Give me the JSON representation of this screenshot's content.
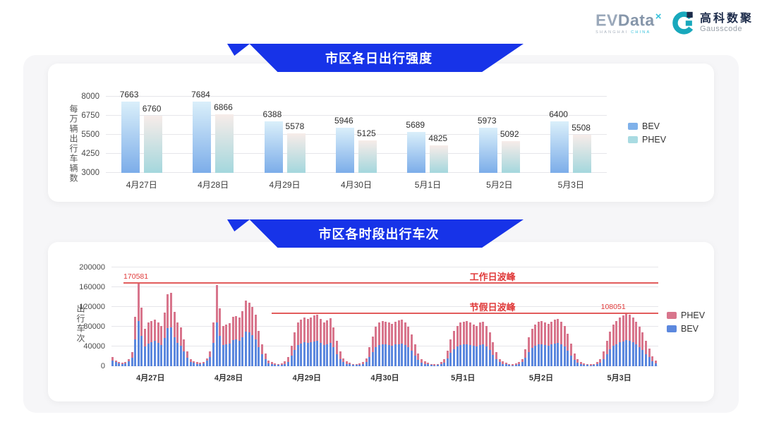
{
  "header": {
    "evdata": {
      "wordmark_ev": "EV",
      "wordmark_data": "Data",
      "mark": "×",
      "subtitle_left": "SHANGHAI ",
      "subtitle_right": "CHINA"
    },
    "gausscode": {
      "name_cn": "高科数聚",
      "name_en": "Gausscode"
    }
  },
  "banners": [
    {
      "title": "市区各日出行强度"
    },
    {
      "title": "市区各时段出行车次"
    }
  ],
  "colors": {
    "banner_blue": "#1733E8",
    "bev_gradient_top": "#DAEFFA",
    "bev_gradient_bottom": "#7CADE9",
    "phev_gradient_top": "#F7ECE9",
    "phev_gradient_bottom": "#A4D7DD",
    "bev_legend1": "#7FB1EA",
    "phev_legend1": "#A9DBE2",
    "bev_bar2": "#5C88DE",
    "phev_bar2": "#D8758C",
    "annotation_line_red": "#E25D5D",
    "annotation_text_red": "#E03A3A"
  },
  "chart_data": [
    {
      "type": "bar",
      "title": "市区各日出行强度",
      "ylabel": "每万辆出行车辆数",
      "ylim": [
        3000,
        8000
      ],
      "yticks": [
        3000,
        4250,
        5500,
        6750,
        8000
      ],
      "grid": true,
      "legend_position": "right",
      "categories": [
        "4月27日",
        "4月28日",
        "4月29日",
        "4月30日",
        "5月1日",
        "5月2日",
        "5月3日"
      ],
      "series": [
        {
          "name": "BEV",
          "values": [
            7663,
            7684,
            6388,
            5946,
            5689,
            5973,
            6400
          ]
        },
        {
          "name": "PHEV",
          "values": [
            6760,
            6866,
            5578,
            5125,
            4825,
            5092,
            5508
          ]
        }
      ]
    },
    {
      "type": "stacked-bar",
      "title": "市区各时段出行车次",
      "ylabel": "出行车次",
      "ylim": [
        0,
        200000
      ],
      "yticks": [
        0,
        40000,
        80000,
        120000,
        160000,
        200000
      ],
      "grid": true,
      "legend_position": "right",
      "legend_order": [
        "PHEV",
        "BEV"
      ],
      "annotations": [
        {
          "text": "工作日波峰",
          "value": 170581,
          "value_label": "170581",
          "line_start": 0.022,
          "text_x": 0.655,
          "value_x": 0.022
        },
        {
          "text": "节假日波峰",
          "value": 108051,
          "value_label": "108051",
          "line_start": 0.293,
          "text_x": 0.655,
          "value_x": 0.895
        }
      ],
      "days": [
        {
          "date": "4月27日",
          "total": [
            18000,
            12000,
            9000,
            7000,
            9000,
            15000,
            28000,
            100000,
            170581,
            119000,
            76000,
            88000,
            92000,
            95000,
            89000,
            81000,
            108000,
            146000,
            149000,
            110000,
            89000,
            79000,
            55000,
            30000
          ],
          "bev": [
            12000,
            8000,
            6000,
            5000,
            6000,
            10000,
            17000,
            54000,
            91000,
            62000,
            40000,
            46000,
            49000,
            51000,
            47000,
            43000,
            57000,
            77000,
            79000,
            58000,
            47000,
            42000,
            30000,
            17000
          ]
        },
        {
          "date": "4月28日",
          "total": [
            14000,
            10000,
            8000,
            7000,
            9000,
            16000,
            30000,
            88000,
            164000,
            117000,
            82000,
            84000,
            87000,
            100000,
            102000,
            98000,
            112000,
            133000,
            128000,
            120000,
            104000,
            72000,
            45000,
            26000
          ],
          "bev": [
            9000,
            7000,
            5000,
            5000,
            6000,
            11000,
            18000,
            47000,
            88000,
            61000,
            43000,
            44000,
            46000,
            53000,
            54000,
            52000,
            59000,
            70000,
            68000,
            63000,
            55000,
            38000,
            24000,
            14000
          ]
        },
        {
          "date": "4月29日",
          "total": [
            12000,
            8000,
            6000,
            5000,
            6000,
            10000,
            18000,
            42000,
            68000,
            88000,
            95000,
            98000,
            96000,
            99000,
            103000,
            105000,
            96000,
            88000,
            93000,
            97000,
            78000,
            52000,
            30000,
            16000
          ],
          "bev": [
            6000,
            4000,
            3000,
            3000,
            3000,
            5000,
            9000,
            21000,
            33000,
            43000,
            46000,
            48000,
            47000,
            48000,
            50000,
            51000,
            47000,
            43000,
            45000,
            47000,
            38000,
            25000,
            15000,
            8000
          ]
        },
        {
          "date": "4月30日",
          "total": [
            10000,
            7000,
            5000,
            5000,
            6000,
            9000,
            16000,
            38000,
            60000,
            80000,
            88000,
            92000,
            90000,
            88000,
            86000,
            90000,
            93000,
            95000,
            88000,
            80000,
            65000,
            45000,
            26000,
            14000
          ],
          "bev": [
            5000,
            4000,
            3000,
            3000,
            3000,
            5000,
            8000,
            19000,
            29000,
            39000,
            43000,
            45000,
            44000,
            43000,
            42000,
            44000,
            45000,
            46000,
            43000,
            39000,
            32000,
            22000,
            13000,
            7000
          ]
        },
        {
          "date": "5月1日",
          "total": [
            10000,
            7000,
            5000,
            4000,
            5000,
            8000,
            14000,
            32000,
            55000,
            72000,
            82000,
            88000,
            90000,
            92000,
            88000,
            85000,
            82000,
            88000,
            90000,
            82000,
            68000,
            48000,
            28000,
            15000
          ],
          "bev": [
            5000,
            4000,
            3000,
            2000,
            3000,
            4000,
            7000,
            16000,
            27000,
            35000,
            40000,
            43000,
            44000,
            45000,
            43000,
            41000,
            40000,
            43000,
            44000,
            40000,
            33000,
            23000,
            14000,
            8000
          ]
        },
        {
          "date": "5月2日",
          "total": [
            10000,
            7000,
            5000,
            4000,
            6000,
            9000,
            15000,
            35000,
            58000,
            76000,
            85000,
            90000,
            92000,
            88000,
            86000,
            90000,
            94000,
            96000,
            90000,
            82000,
            66000,
            46000,
            26000,
            14000
          ],
          "bev": [
            5000,
            4000,
            3000,
            2000,
            3000,
            5000,
            8000,
            17000,
            28000,
            37000,
            41000,
            44000,
            45000,
            43000,
            42000,
            44000,
            46000,
            47000,
            44000,
            40000,
            32000,
            22000,
            13000,
            7000
          ]
        },
        {
          "date": "5月3日",
          "total": [
            9000,
            6000,
            5000,
            4000,
            5000,
            8000,
            14000,
            30000,
            52000,
            70000,
            84000,
            92000,
            98000,
            103000,
            108051,
            104000,
            98000,
            90000,
            80000,
            68000,
            52000,
            36000,
            20000,
            11000
          ],
          "bev": [
            5000,
            3000,
            3000,
            2000,
            3000,
            4000,
            7000,
            15000,
            25000,
            34000,
            41000,
            45000,
            48000,
            50000,
            53000,
            51000,
            48000,
            44000,
            39000,
            33000,
            25000,
            18000,
            10000,
            6000
          ]
        }
      ]
    }
  ]
}
